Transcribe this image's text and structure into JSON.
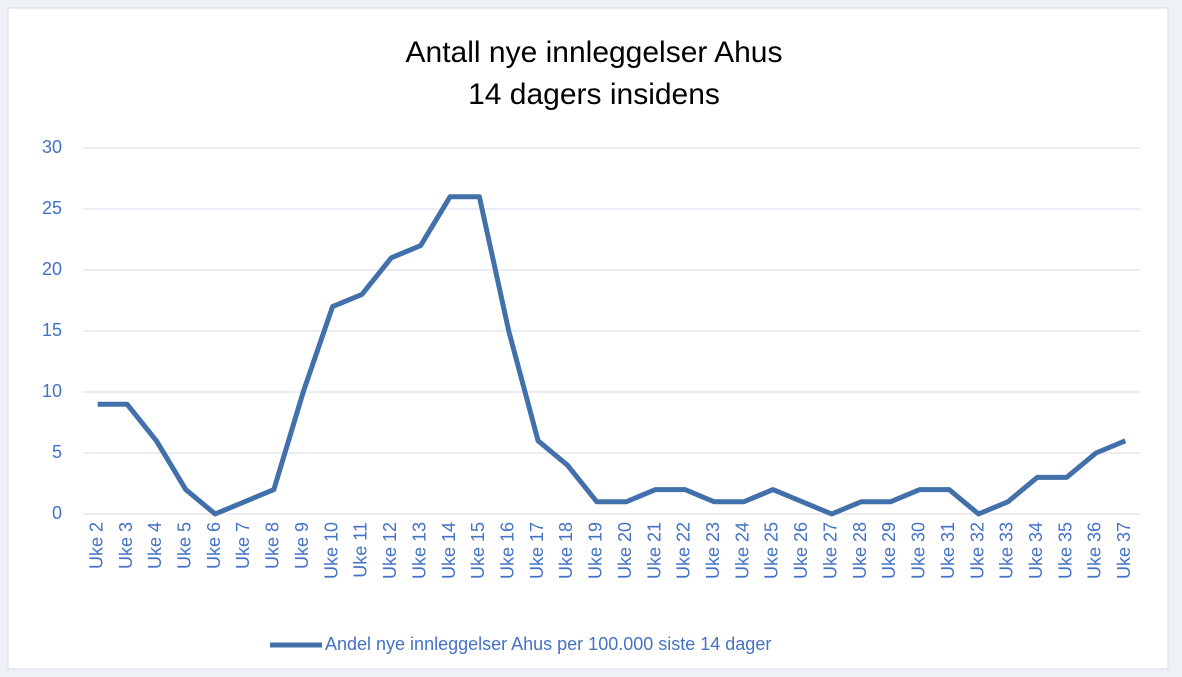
{
  "chart_data": {
    "type": "line",
    "title": [
      "Antall nye innleggelser Ahus",
      "14 dagers insidens"
    ],
    "categories": [
      "Uke 2",
      "Uke 3",
      "Uke 4",
      "Uke 5",
      "Uke 6",
      "Uke 7",
      "Uke 8",
      "Uke 9",
      "Uke 10",
      "Uke 11",
      "Uke 12",
      "Uke 13",
      "Uke 14",
      "Uke 15",
      "Uke 16",
      "Uke 17",
      "Uke 18",
      "Uke 19",
      "Uke 20",
      "Uke 21",
      "Uke 22",
      "Uke 23",
      "Uke 24",
      "Uke 25",
      "Uke 26",
      "Uke 27",
      "Uke 28",
      "Uke 29",
      "Uke 30",
      "Uke 31",
      "Uke 32",
      "Uke 33",
      "Uke 34",
      "Uke 35",
      "Uke 36",
      "Uke 37"
    ],
    "series": [
      {
        "name": "Andel nye innleggelser Ahus per 100.000 siste 14 dager",
        "color": "#4170aa",
        "values": [
          9,
          9,
          6,
          2,
          0,
          1,
          2,
          10,
          17,
          18,
          21,
          22,
          26,
          26,
          15,
          6,
          4,
          1,
          1,
          2,
          2,
          1,
          1,
          2,
          1,
          0,
          1,
          1,
          2,
          2,
          0,
          1,
          3,
          3,
          5,
          6
        ]
      }
    ],
    "ylim": [
      0,
      30
    ],
    "yticks": [
      0,
      5,
      10,
      15,
      20,
      25,
      30
    ],
    "grid": true,
    "legend": "bottom"
  }
}
